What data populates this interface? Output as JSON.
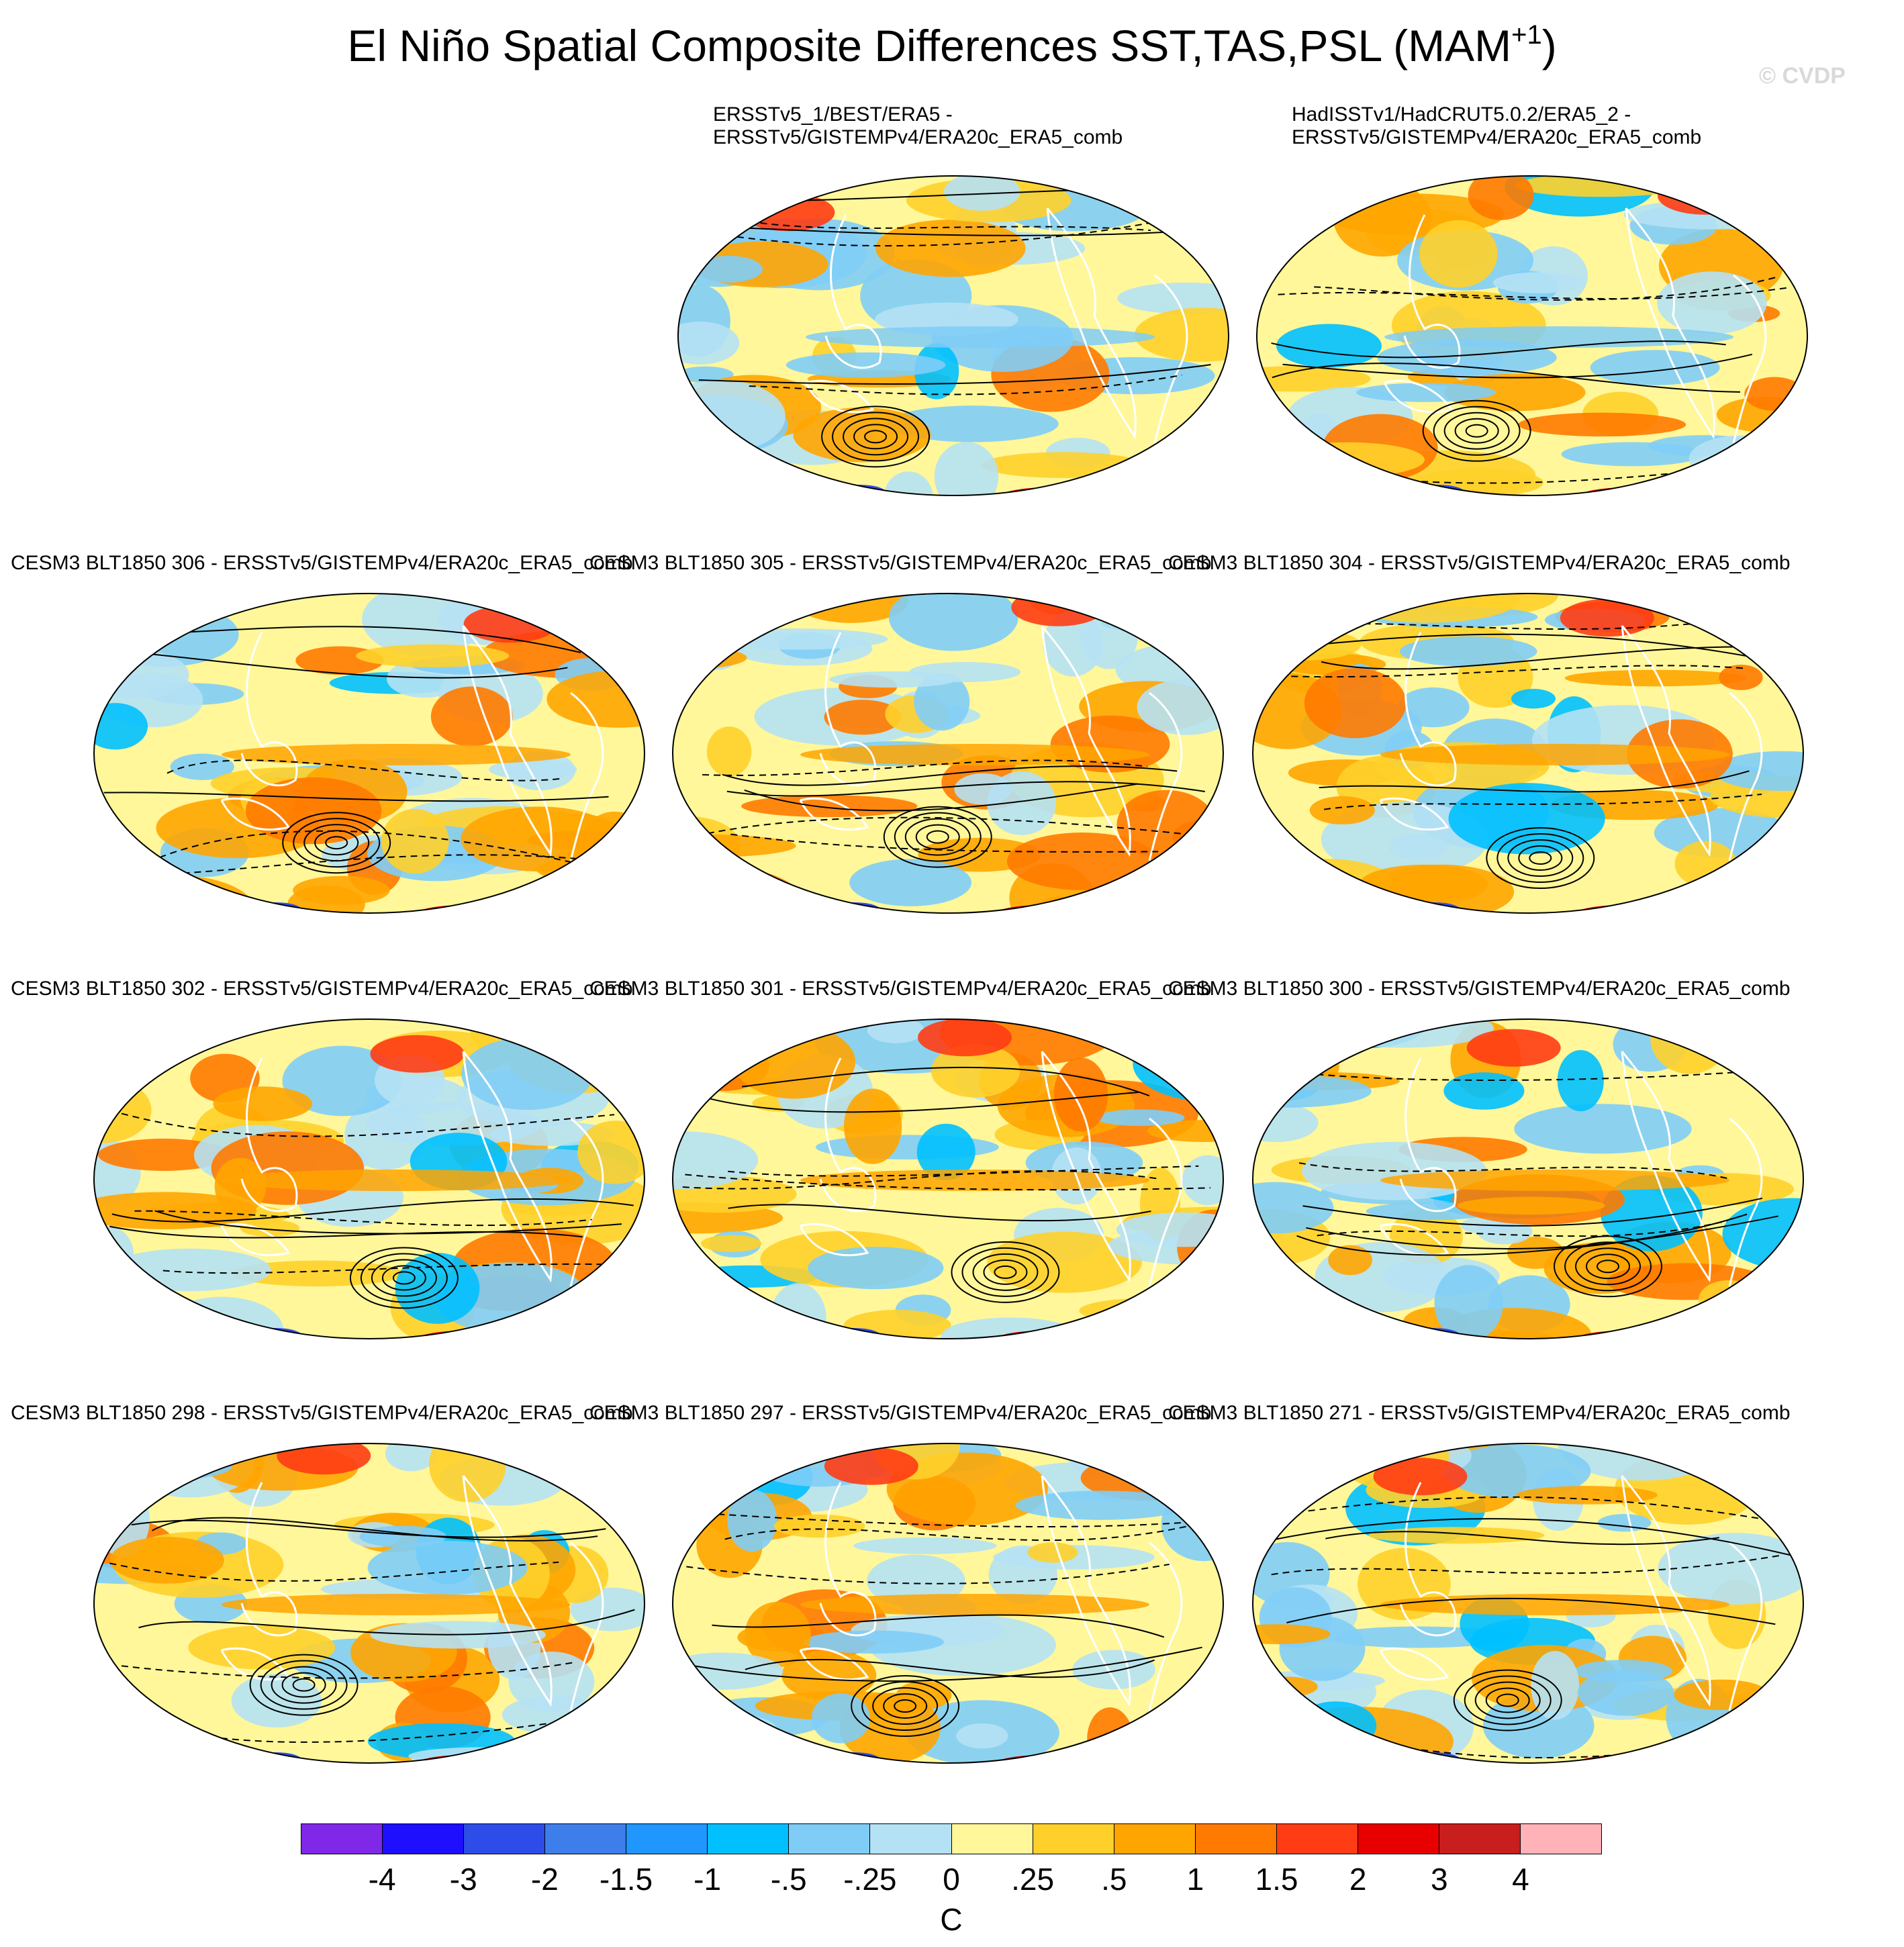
{
  "title": {
    "main": "El Niño Spatial Composite Differences SST,TAS,PSL (MAM",
    "superscript": "+1",
    "close": ")"
  },
  "credit": "© CVDP",
  "panels": [
    {
      "label_line1": "ERSSTv5_1/BEST/ERA5 -",
      "label_line2": "ERSSTv5/GISTEMPv4/ERA20c_ERA5_comb"
    },
    {
      "label_line1": "HadISSTv1/HadCRUT5.0.2/ERA5_2 -",
      "label_line2": "ERSSTv5/GISTEMPv4/ERA20c_ERA5_comb"
    },
    {
      "label": "CESM3 BLT1850 306 - ERSSTv5/GISTEMPv4/ERA20c_ERA5_comb"
    },
    {
      "label": "CESM3 BLT1850 305 - ERSSTv5/GISTEMPv4/ERA20c_ERA5_comb"
    },
    {
      "label": "CESM3 BLT1850 304 - ERSSTv5/GISTEMPv4/ERA20c_ERA5_comb"
    },
    {
      "label": "CESM3 BLT1850 302 - ERSSTv5/GISTEMPv4/ERA20c_ERA5_comb"
    },
    {
      "label": "CESM3 BLT1850 301 - ERSSTv5/GISTEMPv4/ERA20c_ERA5_comb"
    },
    {
      "label": "CESM3 BLT1850 300 - ERSSTv5/GISTEMPv4/ERA20c_ERA5_comb"
    },
    {
      "label": "CESM3 BLT1850 298 - ERSSTv5/GISTEMPv4/ERA20c_ERA5_comb"
    },
    {
      "label": "CESM3 BLT1850 297 - ERSSTv5/GISTEMPv4/ERA20c_ERA5_comb"
    },
    {
      "label": "CESM3 BLT1850 271 - ERSSTv5/GISTEMPv4/ERA20c_ERA5_comb"
    }
  ],
  "colorbar": {
    "colors": [
      "#7f28e8",
      "#1e0fff",
      "#2d4ce8",
      "#3d7eea",
      "#1f97ff",
      "#00c0ff",
      "#7fcdf7",
      "#b5e1f4",
      "#fff79a",
      "#ffd02a",
      "#ffa500",
      "#ff7a00",
      "#ff3c14",
      "#e80000",
      "#c81e1e",
      "#ffb2b8"
    ],
    "ticks": [
      "-4",
      "-3",
      "-2",
      "-1.5",
      "-1",
      "-.5",
      "-.25",
      "0",
      ".25",
      ".5",
      "1",
      "1.5",
      "2",
      "3",
      "4"
    ],
    "units": "C"
  }
}
